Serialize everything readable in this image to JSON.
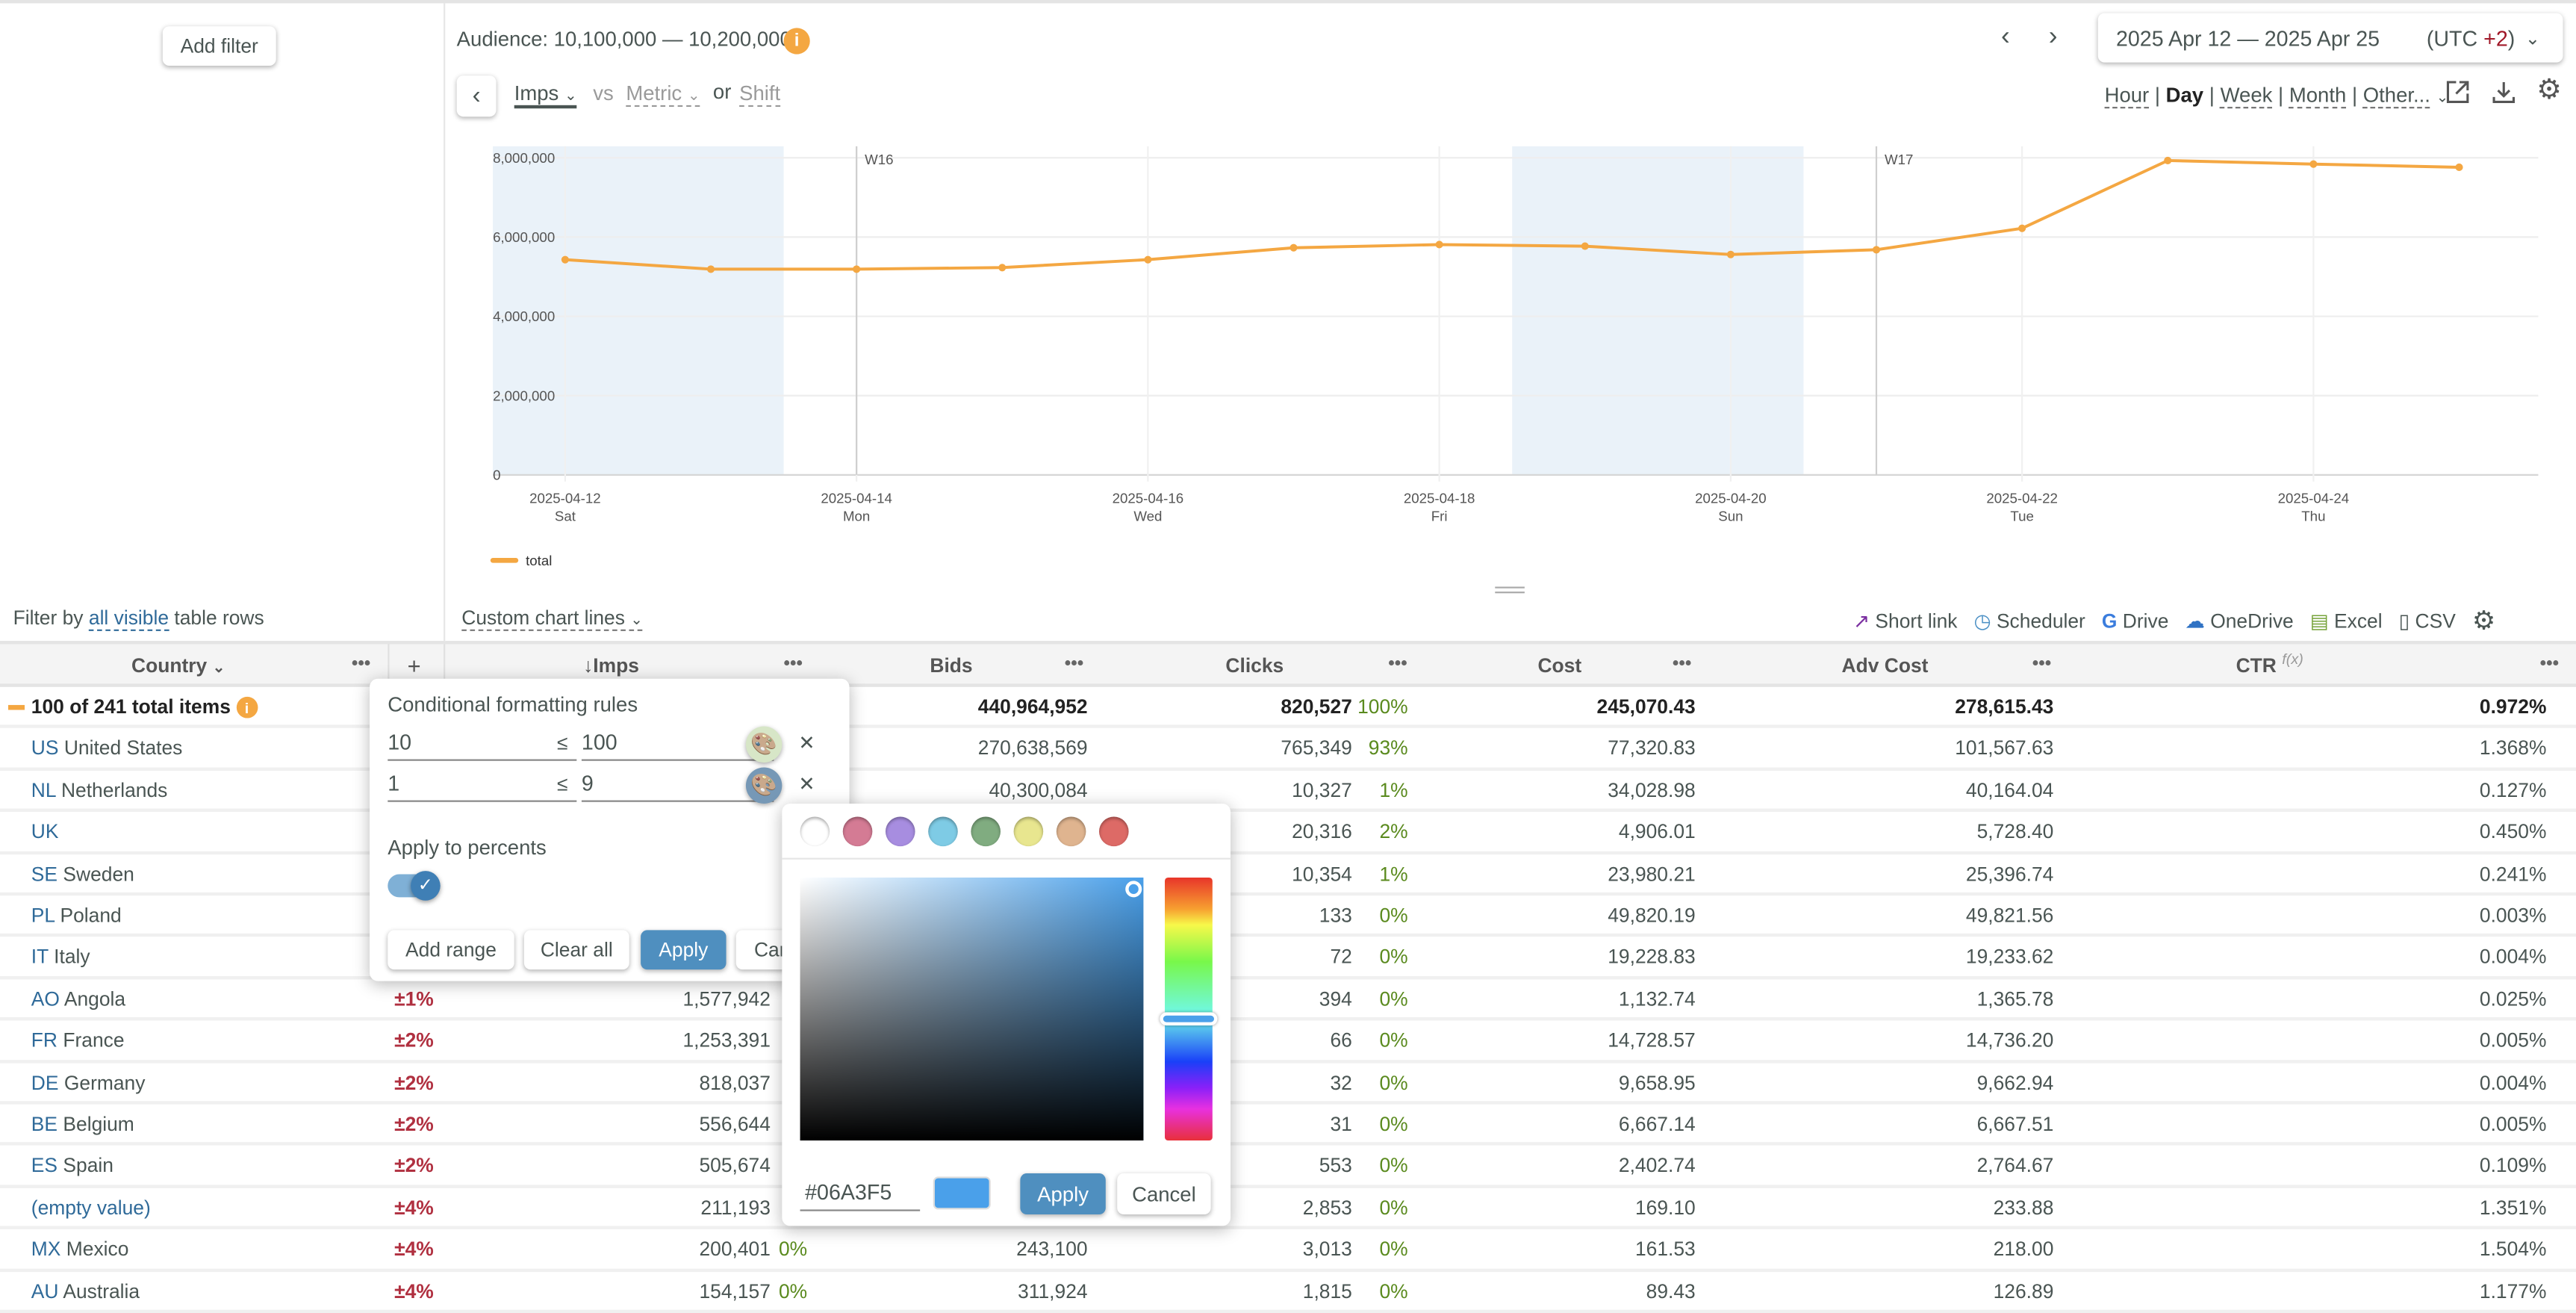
{
  "sidebar": {
    "add_filter": "Add filter",
    "filter_prefix": "Filter by",
    "filter_link": "all visible",
    "filter_suffix": "table rows"
  },
  "header": {
    "audience": "Audience: 10,100,000 — 10,200,000",
    "date_range": "2025 Apr 12 — 2025 Apr 25",
    "tz_prefix": "(UTC ",
    "tz_offset": "+2",
    "tz_suffix": ")",
    "metric": "Imps",
    "vs": "vs",
    "metric2": "Metric",
    "or": "or",
    "shift": "Shift",
    "granularity": [
      "Hour",
      "Day",
      "Week",
      "Month",
      "Other..."
    ],
    "granularity_active": "Day"
  },
  "chart_data": {
    "type": "line",
    "x": [
      "2025-04-12",
      "2025-04-13",
      "2025-04-14",
      "2025-04-15",
      "2025-04-16",
      "2025-04-17",
      "2025-04-18",
      "2025-04-19",
      "2025-04-20",
      "2025-04-21",
      "2025-04-22",
      "2025-04-23",
      "2025-04-24",
      "2025-04-25"
    ],
    "series": [
      {
        "name": "total",
        "color": "#f4a742",
        "values": [
          5430000,
          5190000,
          5190000,
          5230000,
          5430000,
          5730000,
          5810000,
          5770000,
          5560000,
          5680000,
          6220000,
          7930000,
          7840000,
          7760000
        ]
      }
    ],
    "ylim": [
      0,
      8000000
    ],
    "yticks": [
      "0",
      "2,000,000",
      "4,000,000",
      "6,000,000",
      "8,000,000"
    ],
    "xticks": [
      {
        "date": "2025-04-12",
        "day": "Sat"
      },
      {
        "date": "2025-04-14",
        "day": "Mon"
      },
      {
        "date": "2025-04-16",
        "day": "Wed"
      },
      {
        "date": "2025-04-18",
        "day": "Fri"
      },
      {
        "date": "2025-04-20",
        "day": "Sun"
      },
      {
        "date": "2025-04-22",
        "day": "Tue"
      },
      {
        "date": "2025-04-24",
        "day": "Thu"
      }
    ],
    "week_markers": [
      {
        "date": "2025-04-14",
        "label": "W16"
      },
      {
        "date": "2025-04-21",
        "label": "W17"
      }
    ],
    "weekends": [
      [
        "2025-04-12",
        "2025-04-13"
      ],
      [
        "2025-04-19",
        "2025-04-20"
      ]
    ],
    "grid": true,
    "legend": "bottom-left"
  },
  "toolbar": {
    "custom_lines": "Custom chart lines",
    "short_link": "Short link",
    "scheduler": "Scheduler",
    "drive": "Drive",
    "onedrive": "OneDrive",
    "excel": "Excel",
    "csv": "CSV"
  },
  "table": {
    "columns": [
      "Country",
      "+",
      "↓Imps",
      "Bids",
      "Clicks",
      "Cost",
      "Adv Cost",
      "CTR"
    ],
    "ctr_fx": "f(x)",
    "total": {
      "label": "100 of 241 total items",
      "bids": "440,964,952",
      "clicks": "820,527",
      "clicks_pct": "100%",
      "cost": "245,070.43",
      "adv_cost": "278,615.43",
      "ctr": "0.972%"
    },
    "rows": [
      {
        "code": "US",
        "name": "United States",
        "err": "",
        "imps": "",
        "imps_pct": "",
        "bids": "270,638,569",
        "clicks": "765,349",
        "clicks_pct": "93%",
        "cost": "77,320.83",
        "adv_cost": "101,567.63",
        "ctr": "1.368%"
      },
      {
        "code": "NL",
        "name": "Netherlands",
        "err": "",
        "imps": "",
        "imps_pct": "",
        "bids": "40,300,084",
        "clicks": "10,327",
        "clicks_pct": "1%",
        "cost": "34,028.98",
        "adv_cost": "40,164.04",
        "ctr": "0.127%"
      },
      {
        "code": "UK",
        "name": "",
        "err": "",
        "imps": "",
        "imps_pct": "",
        "bids": "",
        "clicks": "20,316",
        "clicks_pct": "2%",
        "cost": "4,906.01",
        "adv_cost": "5,728.40",
        "ctr": "0.450%"
      },
      {
        "code": "SE",
        "name": "Sweden",
        "err": "",
        "imps": "",
        "imps_pct": "",
        "bids": "",
        "clicks": "10,354",
        "clicks_pct": "1%",
        "cost": "23,980.21",
        "adv_cost": "25,396.74",
        "ctr": "0.241%"
      },
      {
        "code": "PL",
        "name": "Poland",
        "err": "",
        "imps": "",
        "imps_pct": "",
        "bids": "",
        "clicks": "133",
        "clicks_pct": "0%",
        "cost": "49,820.19",
        "adv_cost": "49,821.56",
        "ctr": "0.003%"
      },
      {
        "code": "IT",
        "name": "Italy",
        "err": "",
        "imps": "",
        "imps_pct": "",
        "bids": "",
        "clicks": "72",
        "clicks_pct": "0%",
        "cost": "19,228.83",
        "adv_cost": "19,233.62",
        "ctr": "0.004%"
      },
      {
        "code": "AO",
        "name": "Angola",
        "err": "±1%",
        "imps": "1,577,942",
        "imps_pct": "",
        "bids": "",
        "clicks": "394",
        "clicks_pct": "0%",
        "cost": "1,132.74",
        "adv_cost": "1,365.78",
        "ctr": "0.025%"
      },
      {
        "code": "FR",
        "name": "France",
        "err": "±2%",
        "imps": "1,253,391",
        "imps_pct": "",
        "bids": "",
        "clicks": "66",
        "clicks_pct": "0%",
        "cost": "14,728.57",
        "adv_cost": "14,736.20",
        "ctr": "0.005%"
      },
      {
        "code": "DE",
        "name": "Germany",
        "err": "±2%",
        "imps": "818,037",
        "imps_pct": "",
        "bids": "",
        "clicks": "32",
        "clicks_pct": "0%",
        "cost": "9,658.95",
        "adv_cost": "9,662.94",
        "ctr": "0.004%"
      },
      {
        "code": "BE",
        "name": "Belgium",
        "err": "±2%",
        "imps": "556,644",
        "imps_pct": "",
        "bids": "",
        "clicks": "31",
        "clicks_pct": "0%",
        "cost": "6,667.14",
        "adv_cost": "6,667.51",
        "ctr": "0.005%"
      },
      {
        "code": "ES",
        "name": "Spain",
        "err": "±2%",
        "imps": "505,674",
        "imps_pct": "",
        "bids": "",
        "clicks": "553",
        "clicks_pct": "0%",
        "cost": "2,402.74",
        "adv_cost": "2,764.67",
        "ctr": "0.109%"
      },
      {
        "code": "(empty value)",
        "name": "",
        "err": "±4%",
        "imps": "211,193",
        "imps_pct": "",
        "bids": "",
        "clicks": "2,853",
        "clicks_pct": "0%",
        "cost": "169.10",
        "adv_cost": "233.88",
        "ctr": "1.351%"
      },
      {
        "code": "MX",
        "name": "Mexico",
        "err": "±4%",
        "imps": "200,401",
        "imps_pct": "0%",
        "bids": "243,100",
        "clicks": "3,013",
        "clicks_pct": "0%",
        "cost": "161.53",
        "adv_cost": "218.00",
        "ctr": "1.504%"
      },
      {
        "code": "AU",
        "name": "Australia",
        "err": "±4%",
        "imps": "154,157",
        "imps_pct": "0%",
        "bids": "311,924",
        "clicks": "1,815",
        "clicks_pct": "0%",
        "cost": "89.43",
        "adv_cost": "126.89",
        "ctr": "1.177%"
      }
    ]
  },
  "cond_format": {
    "title": "Conditional formatting rules",
    "rules": [
      {
        "from": "10",
        "op": "≤",
        "to": "100",
        "color": "#c9eea0"
      },
      {
        "from": "1",
        "op": "≤",
        "to": "9",
        "color": "#4aa0ea"
      }
    ],
    "apply_percents": "Apply to percents",
    "apply_percents_on": true,
    "add_range": "Add range",
    "clear_all": "Clear all",
    "apply": "Apply",
    "cancel": "Cancel"
  },
  "color_picker": {
    "swatches": [
      "#ffffff",
      "#d47b94",
      "#a78de0",
      "#7ecbe5",
      "#80ac80",
      "#e8e68f",
      "#dfb48f",
      "#dd6a66"
    ],
    "hex": "#06A3F5",
    "preview": "#4aa0ea",
    "apply": "Apply",
    "cancel": "Cancel"
  }
}
